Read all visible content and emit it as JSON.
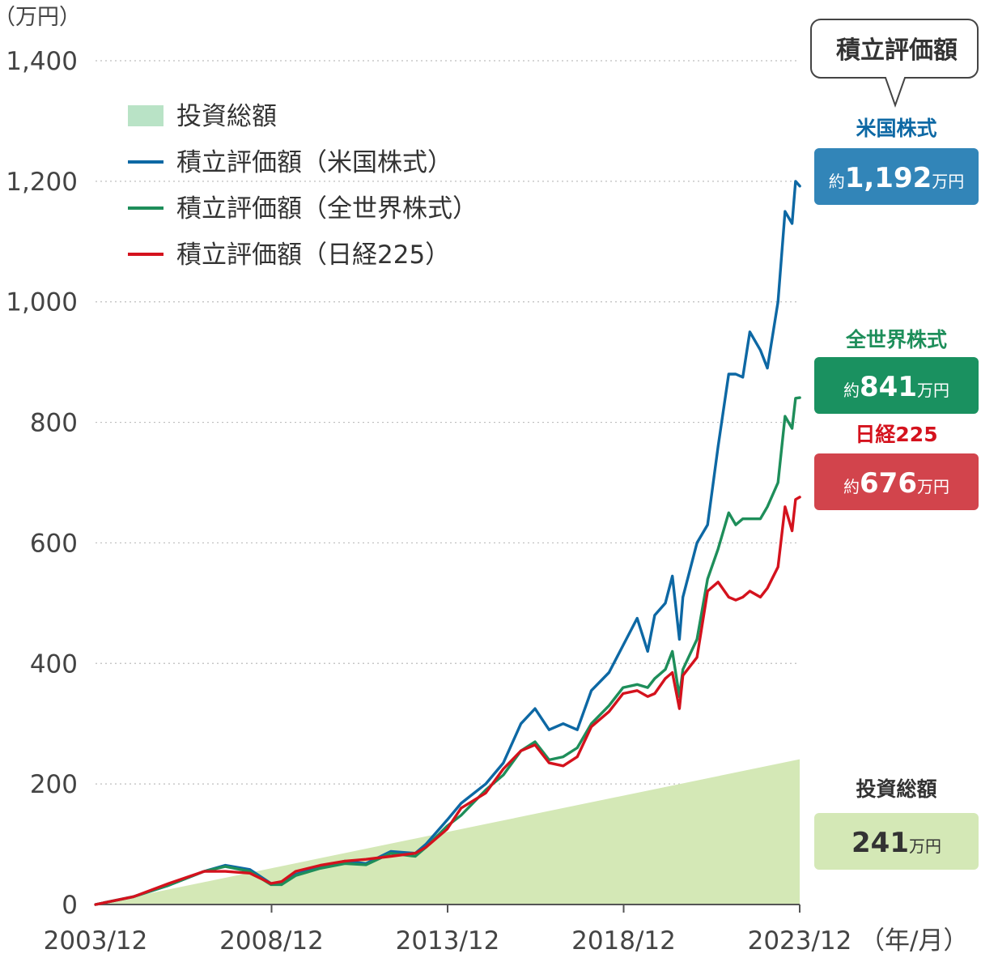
{
  "chart_data": {
    "type": "line",
    "y_unit_label": "（万円）",
    "x_unit_label": "（年/月）",
    "ylim": [
      0,
      1400
    ],
    "y_ticks": [
      0,
      200,
      400,
      600,
      800,
      1000,
      1200,
      1400
    ],
    "y_tick_labels": [
      "0",
      "200",
      "400",
      "600",
      "800",
      "1,000",
      "1,200",
      "1,400"
    ],
    "x_ticks": [
      2003.917,
      2008.917,
      2013.917,
      2018.917,
      2023.917
    ],
    "x_tick_labels": [
      "2003/12",
      "2008/12",
      "2013/12",
      "2018/12",
      "2023/12"
    ],
    "grid": "horizontal dotted",
    "legend_placement": "top-left",
    "callout_title": "積立評価額",
    "series": [
      {
        "name": "投資総額",
        "kind": "area",
        "color": "#d4e8b6",
        "legend_color": "#b9e3c6",
        "final_label": "投資総額",
        "final_value": "241",
        "final_prefix": "",
        "final_unit": "万円",
        "badge_color": "#d4e8b6",
        "badge_text_color": "#333333",
        "label_color": "#333333",
        "points": [
          [
            2003.917,
            0
          ],
          [
            2023.917,
            241
          ]
        ]
      },
      {
        "name": "積立評価額（米国株式）",
        "kind": "line",
        "color": "#0d68a4",
        "final_label": "米国株式",
        "final_value": "1,192",
        "final_prefix": "約",
        "final_unit": "万円",
        "badge_color": "#3285b8",
        "badge_text_color": "#ffffff",
        "label_color": "#0d68a4",
        "points": [
          [
            2003.92,
            0
          ],
          [
            2005.0,
            13
          ],
          [
            2006.0,
            32
          ],
          [
            2007.0,
            55
          ],
          [
            2007.6,
            65
          ],
          [
            2008.3,
            58
          ],
          [
            2008.9,
            35
          ],
          [
            2009.2,
            33
          ],
          [
            2009.6,
            50
          ],
          [
            2010.3,
            62
          ],
          [
            2011.0,
            72
          ],
          [
            2011.6,
            68
          ],
          [
            2012.3,
            88
          ],
          [
            2013.0,
            85
          ],
          [
            2013.3,
            100
          ],
          [
            2013.9,
            140
          ],
          [
            2014.3,
            168
          ],
          [
            2015.0,
            200
          ],
          [
            2015.5,
            235
          ],
          [
            2016.0,
            300
          ],
          [
            2016.4,
            325
          ],
          [
            2016.8,
            290
          ],
          [
            2017.2,
            300
          ],
          [
            2017.6,
            290
          ],
          [
            2018.0,
            355
          ],
          [
            2018.5,
            385
          ],
          [
            2018.9,
            430
          ],
          [
            2019.3,
            475
          ],
          [
            2019.6,
            420
          ],
          [
            2019.8,
            480
          ],
          [
            2020.1,
            500
          ],
          [
            2020.3,
            545
          ],
          [
            2020.5,
            440
          ],
          [
            2020.6,
            510
          ],
          [
            2021.0,
            600
          ],
          [
            2021.3,
            630
          ],
          [
            2021.6,
            760
          ],
          [
            2021.9,
            880
          ],
          [
            2022.1,
            880
          ],
          [
            2022.3,
            875
          ],
          [
            2022.5,
            950
          ],
          [
            2022.8,
            920
          ],
          [
            2023.0,
            890
          ],
          [
            2023.3,
            1000
          ],
          [
            2023.5,
            1150
          ],
          [
            2023.7,
            1130
          ],
          [
            2023.8,
            1200
          ],
          [
            2023.92,
            1192
          ]
        ]
      },
      {
        "name": "積立評価額（全世界株式）",
        "kind": "line",
        "color": "#1e8e5a",
        "final_label": "全世界株式",
        "final_value": "841",
        "final_prefix": "約",
        "final_unit": "万円",
        "badge_color": "#1a9160",
        "badge_text_color": "#ffffff",
        "label_color": "#1e8e5a",
        "points": [
          [
            2003.92,
            0
          ],
          [
            2005.0,
            13
          ],
          [
            2006.0,
            32
          ],
          [
            2007.0,
            55
          ],
          [
            2007.6,
            63
          ],
          [
            2008.3,
            55
          ],
          [
            2008.9,
            33
          ],
          [
            2009.2,
            33
          ],
          [
            2009.6,
            48
          ],
          [
            2010.3,
            60
          ],
          [
            2011.0,
            68
          ],
          [
            2011.6,
            66
          ],
          [
            2012.3,
            85
          ],
          [
            2013.0,
            80
          ],
          [
            2013.3,
            95
          ],
          [
            2013.9,
            130
          ],
          [
            2014.3,
            148
          ],
          [
            2015.0,
            190
          ],
          [
            2015.5,
            215
          ],
          [
            2016.0,
            255
          ],
          [
            2016.4,
            270
          ],
          [
            2016.8,
            240
          ],
          [
            2017.2,
            245
          ],
          [
            2017.6,
            260
          ],
          [
            2018.0,
            300
          ],
          [
            2018.5,
            330
          ],
          [
            2018.9,
            360
          ],
          [
            2019.3,
            365
          ],
          [
            2019.6,
            360
          ],
          [
            2019.8,
            375
          ],
          [
            2020.1,
            390
          ],
          [
            2020.3,
            420
          ],
          [
            2020.5,
            345
          ],
          [
            2020.6,
            390
          ],
          [
            2021.0,
            440
          ],
          [
            2021.3,
            540
          ],
          [
            2021.6,
            590
          ],
          [
            2021.9,
            650
          ],
          [
            2022.1,
            630
          ],
          [
            2022.3,
            640
          ],
          [
            2022.5,
            640
          ],
          [
            2022.8,
            640
          ],
          [
            2023.0,
            660
          ],
          [
            2023.3,
            700
          ],
          [
            2023.5,
            810
          ],
          [
            2023.7,
            790
          ],
          [
            2023.8,
            840
          ],
          [
            2023.92,
            841
          ]
        ]
      },
      {
        "name": "積立評価額（日経225）",
        "kind": "line",
        "color": "#d4121d",
        "final_label": "日経225",
        "final_value": "676",
        "final_prefix": "約",
        "final_unit": "万円",
        "badge_color": "#d2444c",
        "badge_text_color": "#ffffff",
        "label_color": "#d4121d",
        "points": [
          [
            2003.92,
            0
          ],
          [
            2005.0,
            13
          ],
          [
            2006.0,
            35
          ],
          [
            2007.0,
            55
          ],
          [
            2007.6,
            55
          ],
          [
            2008.3,
            52
          ],
          [
            2008.9,
            35
          ],
          [
            2009.2,
            38
          ],
          [
            2009.6,
            55
          ],
          [
            2010.3,
            65
          ],
          [
            2011.0,
            72
          ],
          [
            2011.6,
            75
          ],
          [
            2012.3,
            80
          ],
          [
            2013.0,
            85
          ],
          [
            2013.3,
            95
          ],
          [
            2013.9,
            125
          ],
          [
            2014.3,
            160
          ],
          [
            2015.0,
            185
          ],
          [
            2015.5,
            225
          ],
          [
            2016.0,
            255
          ],
          [
            2016.4,
            265
          ],
          [
            2016.8,
            235
          ],
          [
            2017.2,
            230
          ],
          [
            2017.6,
            245
          ],
          [
            2018.0,
            295
          ],
          [
            2018.5,
            320
          ],
          [
            2018.9,
            350
          ],
          [
            2019.3,
            355
          ],
          [
            2019.6,
            345
          ],
          [
            2019.8,
            350
          ],
          [
            2020.1,
            375
          ],
          [
            2020.3,
            385
          ],
          [
            2020.5,
            325
          ],
          [
            2020.6,
            380
          ],
          [
            2021.0,
            410
          ],
          [
            2021.3,
            520
          ],
          [
            2021.6,
            535
          ],
          [
            2021.9,
            510
          ],
          [
            2022.1,
            505
          ],
          [
            2022.3,
            510
          ],
          [
            2022.5,
            520
          ],
          [
            2022.8,
            510
          ],
          [
            2023.0,
            525
          ],
          [
            2023.3,
            560
          ],
          [
            2023.5,
            660
          ],
          [
            2023.7,
            620
          ],
          [
            2023.8,
            672
          ],
          [
            2023.92,
            676
          ]
        ]
      }
    ]
  }
}
